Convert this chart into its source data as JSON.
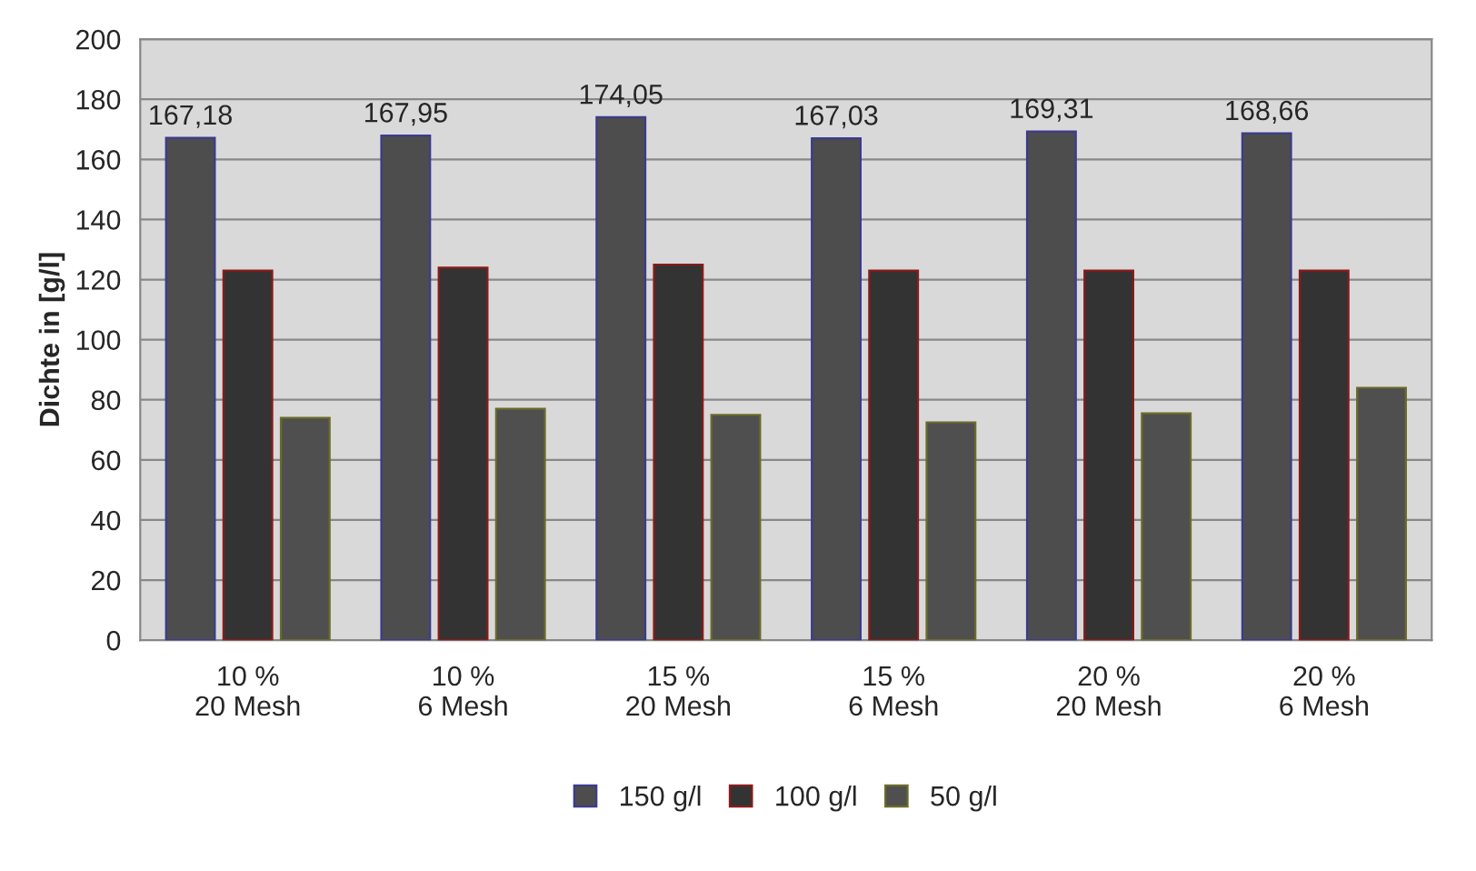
{
  "chart_data": {
    "type": "bar",
    "ylabel": "Dichte in [g/l]",
    "categories": [
      "10 %\n20 Mesh",
      "10 %\n6 Mesh",
      "15 %\n20 Mesh",
      "15 %\n6 Mesh",
      "20 %\n20 Mesh",
      "20 %\n6 Mesh"
    ],
    "series": [
      {
        "name": "150 g/l",
        "color": "#4d4d4d",
        "values": [
          167.18,
          167.95,
          174.05,
          167.03,
          169.31,
          168.66
        ],
        "value_labels": [
          "167,18",
          "167,95",
          "174,05",
          "167,03",
          "169,31",
          "168,66"
        ]
      },
      {
        "name": "100 g/l",
        "color": "#333333",
        "values": [
          123,
          124,
          125,
          123,
          123,
          123
        ]
      },
      {
        "name": "50 g/l",
        "color": "#4f4f4f",
        "values": [
          74,
          77,
          75,
          72.5,
          75.5,
          84
        ]
      }
    ],
    "ylim": [
      0,
      200
    ],
    "yticks": [
      0,
      20,
      40,
      60,
      80,
      100,
      120,
      140,
      160,
      180,
      200
    ],
    "grid": "y",
    "legend": "bottom"
  }
}
